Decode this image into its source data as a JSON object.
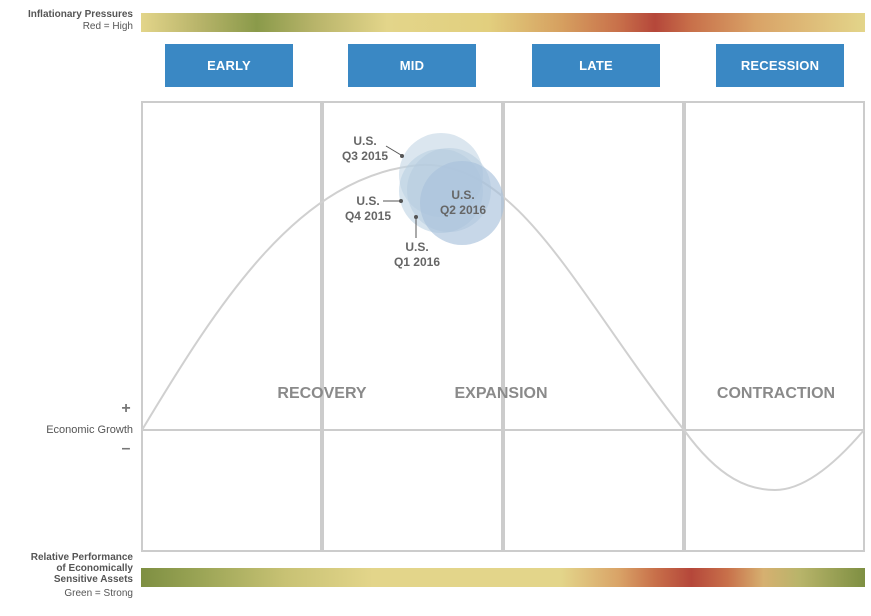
{
  "inflation": {
    "title": "Inflationary Pressures",
    "legend": "Red = High"
  },
  "performance": {
    "line1": "Relative Performance",
    "line2": "of Economically",
    "line3": "Sensitive Assets",
    "legend": "Green = Strong"
  },
  "phases": [
    "EARLY",
    "MID",
    "LATE",
    "RECESSION"
  ],
  "stages": [
    "RECOVERY",
    "EXPANSION",
    "CONTRACTION"
  ],
  "axis": {
    "label": "Economic Growth",
    "plus": "+",
    "minus": "–"
  },
  "points": [
    {
      "line1": "U.S.",
      "line2": "Q3 2015"
    },
    {
      "line1": "U.S.",
      "line2": "Q4 2015"
    },
    {
      "line1": "U.S.",
      "line2": "Q1 2016"
    },
    {
      "line1": "U.S.",
      "line2": "Q2 2016"
    }
  ],
  "colors": {
    "phase_button": "#3a88c4",
    "grid": "#cccccc",
    "curve": "#cfcfcf",
    "bubble": "#b7cde0"
  }
}
